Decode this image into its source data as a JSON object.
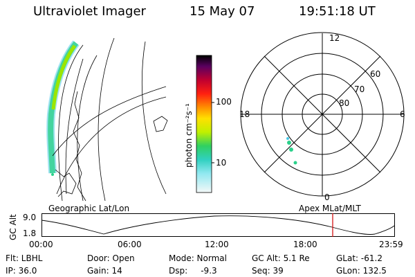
{
  "header": {
    "instrument": "Ultraviolet Imager",
    "date": "15 May 07",
    "time": "19:51:18 UT"
  },
  "colorbar": {
    "unit_label": "photon cm⁻²s⁻¹",
    "ticks": [
      "100",
      "10"
    ]
  },
  "polar_plot": {
    "mlt_labels": [
      "12",
      "18",
      "6",
      "0"
    ],
    "lat_labels": [
      "60",
      "70",
      "80"
    ]
  },
  "timeline": {
    "left_title": "Geographic Lat/Lon",
    "right_title": "Apex MLat/MLT",
    "y_label": "GC Alt",
    "y_top": "9.0",
    "y_bottom": "1.8",
    "x_ticks": [
      "00:00",
      "06:00",
      "12:00",
      "18:00",
      "23:59"
    ],
    "current_time_marker": "19:51:18",
    "marker_color": "#d00000"
  },
  "info": {
    "row1": {
      "flt": "Flt: LBHL",
      "door": "Door: Open",
      "mode": "Mode: Normal",
      "gc_alt": "GC Alt: 5.1 Re",
      "glat": "GLat: -61.2"
    },
    "row2": {
      "ip": "IP: 36.0",
      "gain": "Gain: 14",
      "dsp": "Dsp:     -9.3",
      "seq": "Seq: 39",
      "glon": "GLon: 132.5"
    }
  },
  "colors": {
    "aurora_high": "#9be600",
    "aurora_mid": "#2ad08a",
    "aurora_low": "#47c8e6"
  }
}
